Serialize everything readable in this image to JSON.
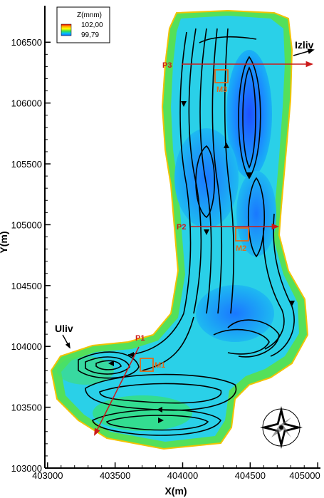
{
  "chart_data": {
    "type": "contour-map",
    "xlabel": "X(m)",
    "ylabel": "Y(m)",
    "xlim": [
      402980,
      405020
    ],
    "ylim": [
      103000,
      106800
    ],
    "x_ticks": [
      "403000",
      "403500",
      "404000",
      "404500",
      "405000"
    ],
    "y_ticks": [
      "103000",
      "103500",
      "104000",
      "104500",
      "105000",
      "105500",
      "106000",
      "106500"
    ],
    "legend": {
      "title": "Z(mnm)",
      "max_label": "102,00",
      "min_label": "99,79",
      "colors": [
        "#ff0000",
        "#ffb000",
        "#ffff00",
        "#40e040",
        "#00c0ff",
        "#1060ff"
      ]
    },
    "profiles": [
      {
        "label": "P1",
        "from": [
          403610,
          104000
        ],
        "to": [
          403470,
          103200
        ]
      },
      {
        "label": "P2",
        "from": [
          404220,
          104950
        ],
        "to": [
          404620,
          104950
        ]
      },
      {
        "label": "P3",
        "from": [
          404040,
          106250
        ],
        "to": [
          404950,
          106250
        ]
      }
    ],
    "monitor_points": [
      {
        "label": "M1",
        "x": 403690,
        "y": 103820
      },
      {
        "label": "M2",
        "x": 404470,
        "y": 104900
      },
      {
        "label": "M3",
        "x": 404310,
        "y": 106170
      }
    ],
    "flow_labels": {
      "inlet": "Uliv",
      "outlet": "Izliv"
    },
    "compass_icon": "compass-rose-icon"
  }
}
